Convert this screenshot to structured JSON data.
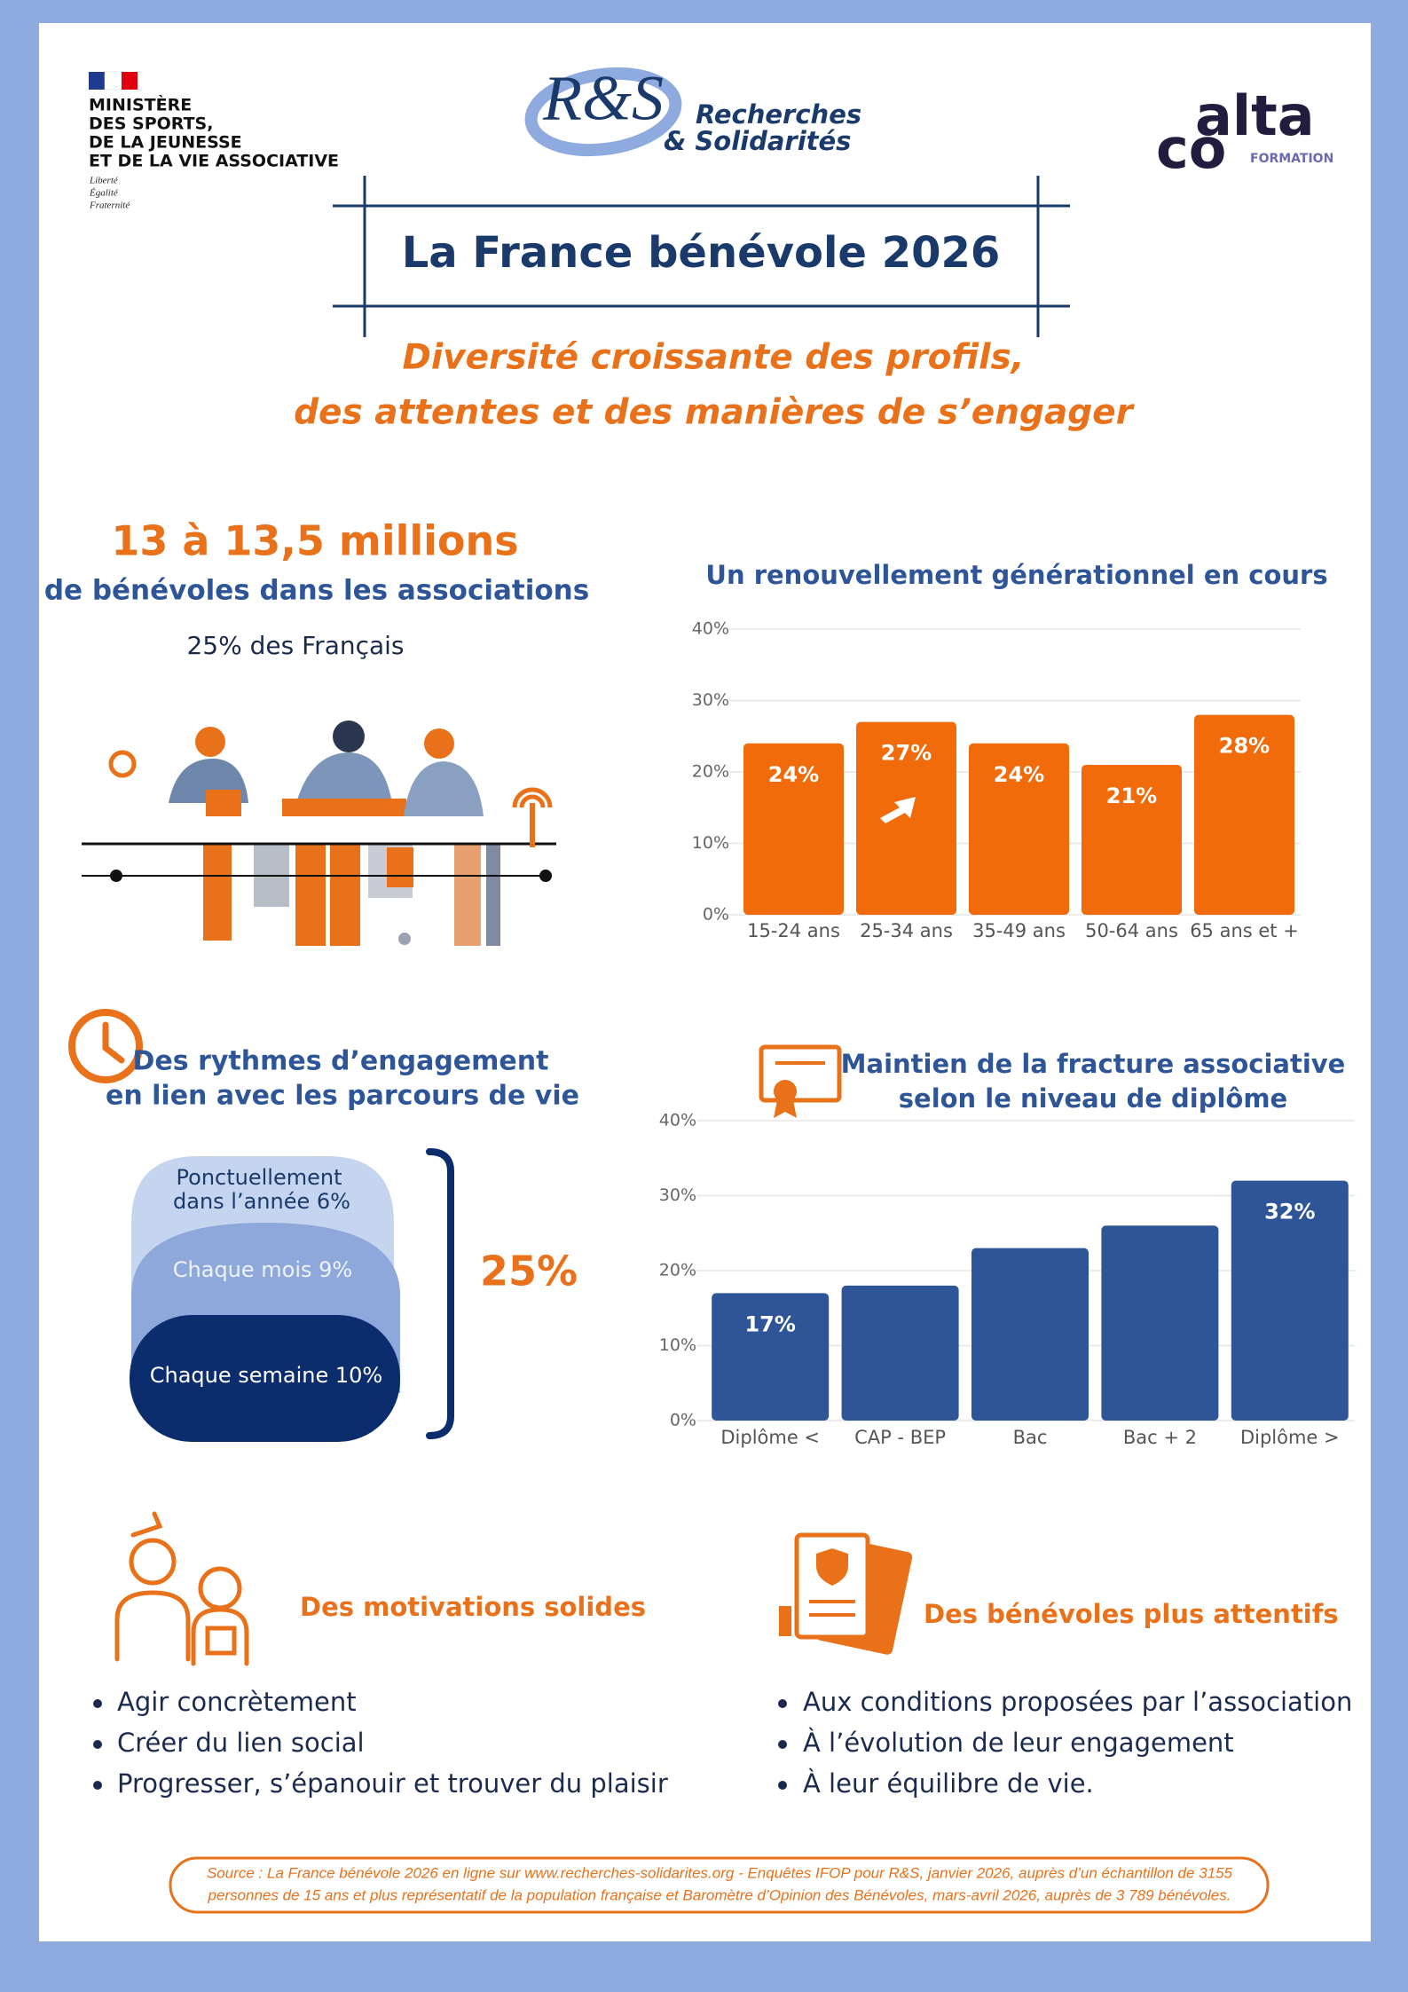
{
  "header": {
    "ministry": [
      "MINISTÈRE",
      "DES SPORTS,",
      "DE LA JEUNESSE",
      "ET DE LA VIE ASSOCIATIVE"
    ],
    "motto": [
      "Liberté",
      "Égalité",
      "Fraternité"
    ],
    "logo_rs": {
      "mark": "R&S",
      "name": [
        "Recherches",
        "& Solidarités"
      ]
    },
    "logo_alta": {
      "top": "alta",
      "bottom": "co",
      "sub": "FORMATION"
    },
    "title": "La France bénévole 2026",
    "subtitle": [
      "Diversité croissante des profils,",
      "des attentes et des manières de s’engager"
    ]
  },
  "volunteers": {
    "headline": "13 à 13,5 millions",
    "subline": "de bénévoles dans les associations",
    "share": "25% des Français"
  },
  "rhythms": {
    "title": [
      "Des rythmes d’engagement",
      "en lien avec les parcours de vie"
    ],
    "levels": [
      {
        "lines": [
          "Ponctuellement",
          "dans l’année 6%"
        ]
      },
      {
        "lines": [
          "Chaque mois 9%"
        ]
      },
      {
        "lines": [
          "Chaque semaine 10%"
        ]
      }
    ],
    "total": "25%"
  },
  "chart_data": [
    {
      "type": "bar",
      "title": "Un renouvellement générationnel en cours",
      "categories": [
        "15-24 ans",
        "25-34 ans",
        "35-49 ans",
        "50-64 ans",
        "65 ans et +"
      ],
      "values": [
        24,
        27,
        24,
        21,
        28
      ],
      "value_labels": [
        "24%",
        "27%",
        "24%",
        "21%",
        "28%"
      ],
      "color": "#f26b0a",
      "ylim": [
        0,
        40
      ],
      "yticks": [
        {
          "value": 0,
          "label": "0%"
        },
        {
          "value": 10,
          "label": "10%"
        },
        {
          "value": 20,
          "label": "20%"
        },
        {
          "value": 30,
          "label": "30%"
        },
        {
          "value": 40,
          "label": "40%"
        }
      ],
      "grid": true
    },
    {
      "type": "bar",
      "title": [
        "Maintien de la fracture associative",
        "selon le niveau de diplôme"
      ],
      "categories": [
        "Diplôme <",
        "CAP - BEP",
        "Bac",
        "Bac + 2",
        "Diplôme >"
      ],
      "values": [
        17,
        18,
        23,
        26,
        32
      ],
      "value_labels": [
        "17%",
        null,
        null,
        null,
        "32%"
      ],
      "color": "#2d5597",
      "ylim": [
        0,
        40
      ],
      "yticks": [
        {
          "value": 0,
          "label": "0%"
        },
        {
          "value": 10,
          "label": "10%"
        },
        {
          "value": 20,
          "label": "20%"
        },
        {
          "value": 30,
          "label": "30%"
        },
        {
          "value": 40,
          "label": "40%"
        }
      ],
      "grid": true
    }
  ],
  "motivations": {
    "title": "Des motivations solides",
    "items": [
      "Agir concrètement",
      "Créer du lien social",
      "Progresser, s’épanouir et trouver du plaisir"
    ]
  },
  "attentive": {
    "title": "Des bénévoles plus attentifs",
    "items": [
      "Aux conditions proposées par l’association",
      "À l’évolution de leur engagement",
      "À leur équilibre de vie."
    ]
  },
  "source": [
    "Source : La France bénévole 2026 en ligne sur www.recherches-solidarites.org - Enquêtes IFOP pour R&S, janvier 2026, auprès d’un échantillon de 3155",
    "personnes de 15 ans et plus représentatif de la population française et Baromètre d’Opinion des Bénévoles, mars-avril 2026, auprès de 3 789 bénévoles."
  ]
}
